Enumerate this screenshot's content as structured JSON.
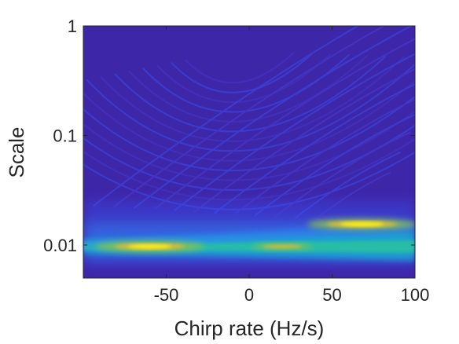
{
  "chart_data": {
    "type": "heatmap",
    "title": "",
    "xlabel": "Chirp rate (Hz/s)",
    "ylabel": "Scale",
    "x_scale": "linear",
    "y_scale": "log",
    "xlim": [
      -100,
      100
    ],
    "ylim": [
      0.005,
      1
    ],
    "x_ticks": [
      -50,
      0,
      50,
      100
    ],
    "x_tick_labels": [
      "-50",
      "0",
      "50",
      "100"
    ],
    "y_ticks": [
      0.01,
      0.1,
      1
    ],
    "y_tick_labels": [
      "0.01",
      "0.1",
      "1"
    ],
    "colormap": "parula",
    "colors": [
      "#3e26a8",
      "#3a4ff0",
      "#2d8df2",
      "#15b3cf",
      "#2bc59b",
      "#8cc44c",
      "#e0b93b",
      "#fdf51e"
    ],
    "features": [
      {
        "x_center": -60,
        "y_center": 0.0097,
        "intensity": 1.0
      },
      {
        "x_center": 68,
        "y_center": 0.0155,
        "intensity": 1.0
      },
      {
        "x_center": 20,
        "y_center": 0.0097,
        "intensity": 0.55
      }
    ],
    "grid": false
  }
}
